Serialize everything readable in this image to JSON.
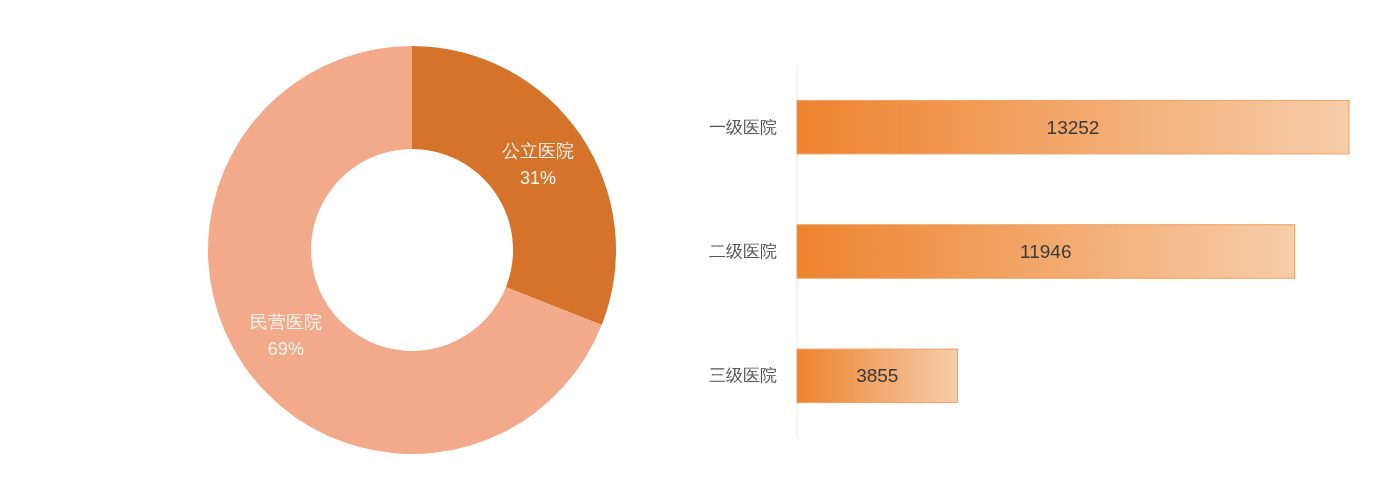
{
  "chart_data": [
    {
      "type": "donut",
      "categories": [
        "公立医院",
        "民营医院"
      ],
      "values": [
        31,
        69
      ],
      "colors": [
        "#d5732b",
        "#f2aa8b"
      ],
      "value_labels": [
        "31%",
        "69%"
      ]
    },
    {
      "type": "bar",
      "orientation": "horizontal",
      "categories": [
        "一级医院",
        "二级医院",
        "三级医院"
      ],
      "values": [
        13252,
        11946,
        3855
      ],
      "color": "#f2a86c",
      "data_labels": true
    }
  ]
}
